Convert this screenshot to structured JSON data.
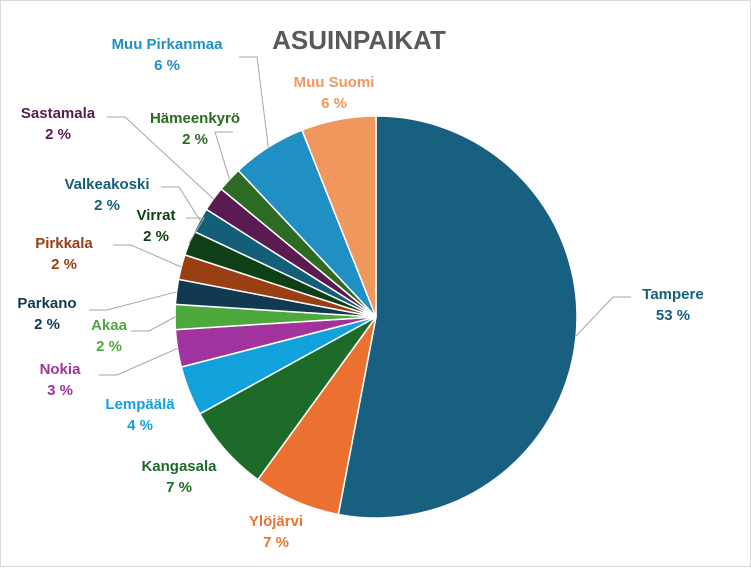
{
  "chart_data": {
    "type": "pie",
    "title": "ASUINPAIKAT",
    "slices": [
      {
        "name": "Tampere",
        "value": 53,
        "label": "53 %",
        "color": "#17607F"
      },
      {
        "name": "Ylöjärvi",
        "value": 7,
        "label": "7 %",
        "color": "#EC7131"
      },
      {
        "name": "Kangasala",
        "value": 7,
        "label": "7 %",
        "color": "#1C6B28"
      },
      {
        "name": "Lempäälä",
        "value": 4,
        "label": "4 %",
        "color": "#11A2DC"
      },
      {
        "name": "Nokia",
        "value": 3,
        "label": "3 %",
        "color": "#A1339F"
      },
      {
        "name": "Akaa",
        "value": 2,
        "label": "2 %",
        "color": "#4EA93C"
      },
      {
        "name": "Parkano",
        "value": 2,
        "label": "2 %",
        "color": "#113A51"
      },
      {
        "name": "Pirkkala",
        "value": 2,
        "label": "2 %",
        "color": "#9A3E14"
      },
      {
        "name": "Virrat",
        "value": 2,
        "label": "2 %",
        "color": "#0F3F16"
      },
      {
        "name": "Valkeakoski",
        "value": 2,
        "label": "2 %",
        "color": "#135F7A"
      },
      {
        "name": "Sastamala",
        "value": 2,
        "label": "2 %",
        "color": "#5A1A52"
      },
      {
        "name": "Hämeenkyrö",
        "value": 2,
        "label": "2 %",
        "color": "#2D6A23"
      },
      {
        "name": "Muu Pirkanmaa",
        "value": 6,
        "label": "6 %",
        "color": "#1F8FC4"
      },
      {
        "name": "Muu Suomi",
        "value": 6,
        "label": "6 %",
        "color": "#F0975E"
      }
    ]
  }
}
